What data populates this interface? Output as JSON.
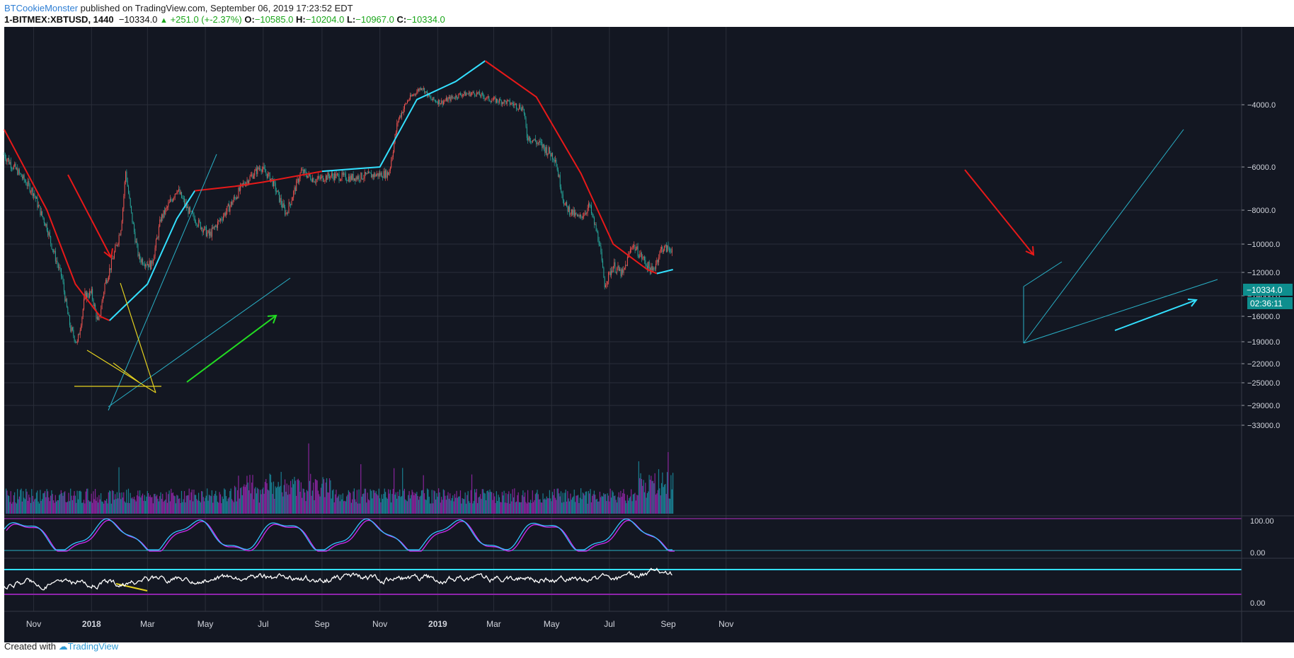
{
  "header": {
    "author": "BTCookieMonster",
    "published_text": "published on TradingView.com, September 06, 2019 17:23:52 EDT",
    "symbol": "1-BITMEX:XBTUSD, 1440",
    "last": "−10334.0",
    "change": "+251.0 (+-2.37%)",
    "o_label": "O:",
    "o_value": "−10585.0",
    "h_label": "H:",
    "h_value": "−10204.0",
    "l_label": "L:",
    "l_value": "−10967.0",
    "c_label": "C:",
    "c_value": "−10334.0"
  },
  "footer": {
    "created_with": "Created with",
    "brand": "TradingView"
  },
  "colors": {
    "background": "#131722",
    "grid": "#2a2e39",
    "up": "#26a69a",
    "down": "#ef5350",
    "ma_red": "#e81919",
    "ma_cyan": "#33e0ff",
    "channel": "#29b0c6",
    "vol_purple": "#9c27b0",
    "vol_teal": "#1b8fa3"
  },
  "chart_data": {
    "type": "candlestick",
    "x_labels": [
      "Nov",
      "2018",
      "Mar",
      "May",
      "Jul",
      "Sep",
      "Nov",
      "2019",
      "Mar",
      "May",
      "Jul",
      "Sep",
      "Nov"
    ],
    "y_axis_labels": [
      "−4000.0",
      "−6000.0",
      "−8000.0",
      "−10000.0",
      "−12000.0",
      "−14000.0",
      "−16000.0",
      "−19000.0",
      "−22000.0",
      "−25000.0",
      "−29000.0",
      "−33000.0"
    ],
    "price_badge": "−10334.0",
    "countdown_badge": "02:36:11",
    "price_path": [
      [
        "2017-10-01",
        -5600
      ],
      [
        "2017-10-15",
        -6200
      ],
      [
        "2017-11-01",
        -7200
      ],
      [
        "2017-11-15",
        -9000
      ],
      [
        "2017-12-01",
        -12500
      ],
      [
        "2017-12-10",
        -17500
      ],
      [
        "2017-12-17",
        -19200
      ],
      [
        "2017-12-25",
        -14000
      ],
      [
        "2018-01-01",
        -13800
      ],
      [
        "2018-01-08",
        -16800
      ],
      [
        "2018-01-15",
        -13000
      ],
      [
        "2018-02-01",
        -9000
      ],
      [
        "2018-02-06",
        -6200
      ],
      [
        "2018-02-20",
        -11000
      ],
      [
        "2018-03-05",
        -11500
      ],
      [
        "2018-03-15",
        -8500
      ],
      [
        "2018-04-01",
        -7000
      ],
      [
        "2018-04-15",
        -8200
      ],
      [
        "2018-05-05",
        -9500
      ],
      [
        "2018-05-20",
        -8300
      ],
      [
        "2018-06-10",
        -6800
      ],
      [
        "2018-06-28",
        -6000
      ],
      [
        "2018-07-10",
        -6600
      ],
      [
        "2018-07-25",
        -8200
      ],
      [
        "2018-08-10",
        -6200
      ],
      [
        "2018-08-25",
        -6600
      ],
      [
        "2018-09-10",
        -6400
      ],
      [
        "2018-10-01",
        -6500
      ],
      [
        "2018-10-20",
        -6400
      ],
      [
        "2018-11-10",
        -6300
      ],
      [
        "2018-11-20",
        -4500
      ],
      [
        "2018-12-01",
        -3800
      ],
      [
        "2018-12-15",
        -3300
      ],
      [
        "2018-12-25",
        -3800
      ],
      [
        "2019-01-05",
        -3900
      ],
      [
        "2019-01-25",
        -3600
      ],
      [
        "2019-02-10",
        -3550
      ],
      [
        "2019-02-25",
        -3800
      ],
      [
        "2019-03-15",
        -3900
      ],
      [
        "2019-04-01",
        -4100
      ],
      [
        "2019-04-05",
        -5000
      ],
      [
        "2019-04-20",
        -5300
      ],
      [
        "2019-05-05",
        -5700
      ],
      [
        "2019-05-15",
        -7800
      ],
      [
        "2019-05-30",
        -8500
      ],
      [
        "2019-06-10",
        -7800
      ],
      [
        "2019-06-20",
        -9800
      ],
      [
        "2019-06-26",
        -13000
      ],
      [
        "2019-07-05",
        -11500
      ],
      [
        "2019-07-15",
        -12200
      ],
      [
        "2019-07-25",
        -10000
      ],
      [
        "2019-08-05",
        -11000
      ],
      [
        "2019-08-15",
        -12000
      ],
      [
        "2019-08-25",
        -10300
      ],
      [
        "2019-09-06",
        -10334
      ]
    ],
    "moving_averages": [
      {
        "color": "red",
        "points": [
          [
            "2017-10-01",
            -4800
          ],
          [
            "2017-11-15",
            -8000
          ],
          [
            "2017-12-15",
            -13000
          ],
          [
            "2018-01-10",
            -16000
          ],
          [
            "2018-01-20",
            -16500
          ]
        ]
      },
      {
        "color": "cyan",
        "points": [
          [
            "2018-01-20",
            -16500
          ],
          [
            "2018-03-01",
            -13000
          ],
          [
            "2018-04-01",
            -8500
          ],
          [
            "2018-04-20",
            -7100
          ]
        ]
      },
      {
        "color": "red",
        "points": [
          [
            "2018-04-20",
            -7100
          ],
          [
            "2018-06-01",
            -6900
          ],
          [
            "2018-07-01",
            -6700
          ],
          [
            "2018-09-01",
            -6200
          ]
        ]
      },
      {
        "color": "cyan",
        "points": [
          [
            "2018-09-01",
            -6200
          ],
          [
            "2018-11-01",
            -6000
          ],
          [
            "2018-12-10",
            -3800
          ],
          [
            "2019-01-20",
            -3100
          ],
          [
            "2019-02-20",
            -2300
          ]
        ]
      },
      {
        "color": "red",
        "points": [
          [
            "2019-02-20",
            -2300
          ],
          [
            "2019-04-15",
            -3700
          ],
          [
            "2019-06-01",
            -6300
          ],
          [
            "2019-07-05",
            -10000
          ],
          [
            "2019-08-10",
            -11800
          ],
          [
            "2019-08-20",
            -12100
          ]
        ]
      },
      {
        "color": "cyan",
        "points": [
          [
            "2019-08-20",
            -12100
          ],
          [
            "2019-09-06",
            -11800
          ]
        ]
      }
    ],
    "volume_panel": {
      "colors": [
        "purple",
        "teal"
      ]
    },
    "stoch_panel": {
      "labels": [
        "100.00",
        "0.00"
      ]
    },
    "rsi_panel": {
      "labels": [
        "0.00"
      ]
    }
  }
}
